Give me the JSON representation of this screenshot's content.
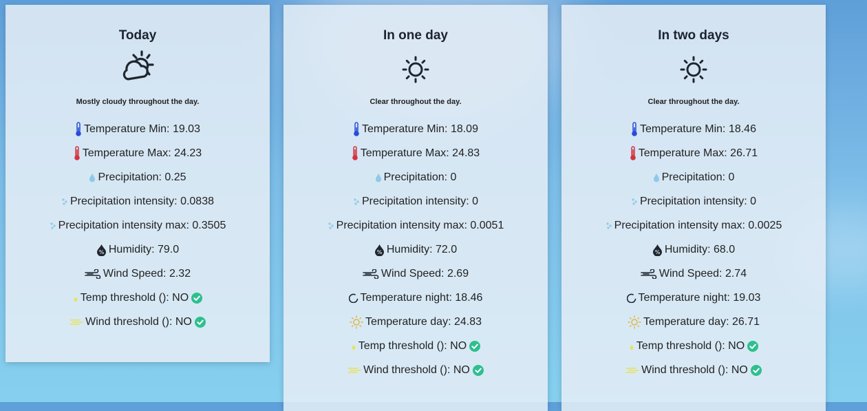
{
  "cards": [
    {
      "title": "Today",
      "weather_icon": "partly-cloudy-day-icon",
      "summary": "Mostly cloudy throughout the day.",
      "temp_min": "Temperature Min: 19.03",
      "temp_max": "Temperature Max: 24.23",
      "precipitation": "Precipitation: 0.25",
      "precip_intensity": "Precipitation intensity: 0.0838",
      "precip_intensity_max": "Precipitation intensity max: 0.3505",
      "humidity": "Humidity: 79.0",
      "wind_speed": "Wind Speed: 2.32",
      "temp_threshold": "Temp threshold (): NO",
      "wind_threshold": "Wind threshold (): NO"
    },
    {
      "title": "In one day",
      "weather_icon": "clear-day-icon",
      "summary": "Clear throughout the day.",
      "temp_min": "Temperature Min: 18.09",
      "temp_max": "Temperature Max: 24.83",
      "precipitation": "Precipitation: 0",
      "precip_intensity": "Precipitation intensity: 0",
      "precip_intensity_max": "Precipitation intensity max: 0.0051",
      "humidity": "Humidity: 72.0",
      "wind_speed": "Wind Speed: 2.69",
      "temp_night": "Temperature night: 18.46",
      "temp_day": "Temperature day: 24.83",
      "temp_threshold": "Temp threshold (): NO",
      "wind_threshold": "Wind threshold (): NO"
    },
    {
      "title": "In two days",
      "weather_icon": "clear-day-icon",
      "summary": "Clear throughout the day.",
      "temp_min": "Temperature Min: 18.46",
      "temp_max": "Temperature Max: 26.71",
      "precipitation": "Precipitation: 0",
      "precip_intensity": "Precipitation intensity: 0",
      "precip_intensity_max": "Precipitation intensity max: 0.0025",
      "humidity": "Humidity: 68.0",
      "wind_speed": "Wind Speed: 2.74",
      "temp_night": "Temperature night: 19.03",
      "temp_day": "Temperature day: 26.71",
      "temp_threshold": "Temp threshold (): NO",
      "wind_threshold": "Wind threshold (): NO"
    }
  ],
  "colors": {
    "temp_min_icon": "#2a4bd7",
    "temp_max_icon": "#d2333f",
    "precip_icon": "#8ec9ea",
    "sun_icon": "#e2b53a",
    "threshold_icon": "#e6e35a",
    "check": "#2fbf8f"
  }
}
